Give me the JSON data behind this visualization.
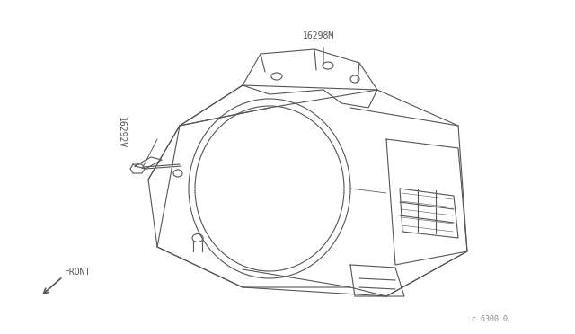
{
  "background_color": "#ffffff",
  "line_color": "#555555",
  "text_color": "#555555",
  "title": "",
  "label_16298M": "16298M",
  "label_16292V": "16292V",
  "label_front": "FRONT",
  "label_part_no": "c 6300 0",
  "fig_width": 6.4,
  "fig_height": 3.72,
  "dpi": 100
}
